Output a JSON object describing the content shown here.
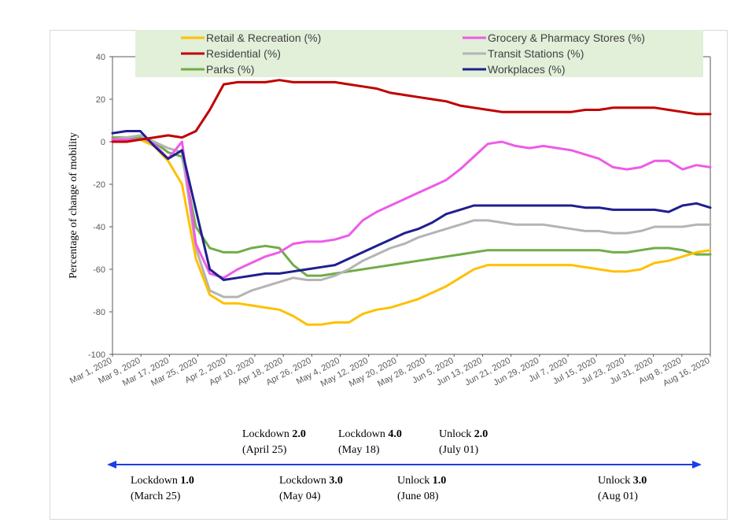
{
  "chart_data": {
    "type": "line",
    "title": "",
    "xlabel": "",
    "ylabel": "Percentage of change of mobility",
    "ylim": [
      -100,
      40
    ],
    "yticks": [
      40,
      20,
      0,
      -20,
      -40,
      -60,
      -80,
      -100
    ],
    "xticks": [
      "Mar 1, 2020",
      "Mar 9, 2020",
      "Mar 17, 2020",
      "Mar 25, 2020",
      "Apr 2, 2020",
      "Apr 10, 2020",
      "Apr 18, 2020",
      "Apr 26, 2020",
      "May 4, 2020",
      "May 12, 2020",
      "May 20, 2020",
      "May 28, 2020",
      "Jun 5, 2020",
      "Jun 13, 2020",
      "Jun 21, 2020",
      "Jun 29, 2020",
      "Jul 7, 2020",
      "Jul 15, 2020",
      "Jul 23, 2020",
      "Jul 31, 2020",
      "Aug 8, 2020",
      "Aug 16, 2020"
    ],
    "x": [
      "Mar 1",
      "Mar 5",
      "Mar 9",
      "Mar 13",
      "Mar 17",
      "Mar 21",
      "Mar 25",
      "Mar 29",
      "Apr 2",
      "Apr 6",
      "Apr 10",
      "Apr 14",
      "Apr 18",
      "Apr 22",
      "Apr 26",
      "Apr 30",
      "May 4",
      "May 8",
      "May 12",
      "May 16",
      "May 20",
      "May 24",
      "May 28",
      "Jun 1",
      "Jun 5",
      "Jun 9",
      "Jun 13",
      "Jun 17",
      "Jun 21",
      "Jun 25",
      "Jun 29",
      "Jul 3",
      "Jul 7",
      "Jul 11",
      "Jul 15",
      "Jul 19",
      "Jul 23",
      "Jul 27",
      "Jul 31",
      "Aug 4",
      "Aug 8",
      "Aug 12",
      "Aug 16",
      "Aug 20"
    ],
    "legend_position": "top",
    "grid": false,
    "series": [
      {
        "name": "Retail & Recreation (%)",
        "color": "#ffc000",
        "values": [
          0,
          0,
          1,
          -2,
          -9,
          -20,
          -55,
          -72,
          -76,
          -76,
          -77,
          -78,
          -79,
          -82,
          -86,
          -86,
          -85,
          -85,
          -81,
          -79,
          -78,
          -76,
          -74,
          -71,
          -68,
          -64,
          -60,
          -58,
          -58,
          -58,
          -58,
          -58,
          -58,
          -58,
          -59,
          -60,
          -61,
          -61,
          -60,
          -57,
          -56,
          -54,
          -52,
          -51
        ]
      },
      {
        "name": "Grocery & Pharmacy Stores (%)",
        "color": "#ee5be8",
        "values": [
          1,
          1,
          1,
          -1,
          -8,
          0,
          -48,
          -62,
          -64,
          -60,
          -57,
          -54,
          -52,
          -48,
          -47,
          -47,
          -46,
          -44,
          -37,
          -33,
          -30,
          -27,
          -24,
          -21,
          -18,
          -13,
          -7,
          -1,
          0,
          -2,
          -3,
          -2,
          -3,
          -4,
          -6,
          -8,
          -12,
          -13,
          -12,
          -9,
          -9,
          -13,
          -11,
          -12
        ]
      },
      {
        "name": "Residential (%)",
        "color": "#c00000",
        "values": [
          0,
          0,
          1,
          2,
          3,
          2,
          5,
          15,
          27,
          28,
          28,
          28,
          29,
          28,
          28,
          28,
          28,
          27,
          26,
          25,
          23,
          22,
          21,
          20,
          19,
          17,
          16,
          15,
          14,
          14,
          14,
          14,
          14,
          14,
          15,
          15,
          16,
          16,
          16,
          16,
          15,
          14,
          13,
          13
        ]
      },
      {
        "name": "Transit Stations (%)",
        "color": "#b4b4b4",
        "values": [
          1,
          2,
          3,
          0,
          -3,
          -5,
          -50,
          -70,
          -73,
          -73,
          -70,
          -68,
          -66,
          -64,
          -65,
          -65,
          -63,
          -60,
          -56,
          -53,
          -50,
          -48,
          -45,
          -43,
          -41,
          -39,
          -37,
          -37,
          -38,
          -39,
          -39,
          -39,
          -40,
          -41,
          -42,
          -42,
          -43,
          -43,
          -42,
          -40,
          -40,
          -40,
          -39,
          -39
        ]
      },
      {
        "name": "Parks (%)",
        "color": "#70ad47",
        "values": [
          2,
          2,
          2,
          0,
          -5,
          -7,
          -40,
          -50,
          -52,
          -52,
          -50,
          -49,
          -50,
          -58,
          -63,
          -63,
          -62,
          -61,
          -60,
          -59,
          -58,
          -57,
          -56,
          -55,
          -54,
          -53,
          -52,
          -51,
          -51,
          -51,
          -51,
          -51,
          -51,
          -51,
          -51,
          -51,
          -52,
          -52,
          -51,
          -50,
          -50,
          -51,
          -53,
          -53
        ]
      },
      {
        "name": "Workplaces (%)",
        "color": "#1f1f8f",
        "values": [
          4,
          5,
          5,
          -2,
          -8,
          -4,
          -32,
          -60,
          -65,
          -64,
          -63,
          -62,
          -62,
          -61,
          -60,
          -59,
          -58,
          -55,
          -52,
          -49,
          -46,
          -43,
          -41,
          -38,
          -34,
          -32,
          -30,
          -30,
          -30,
          -30,
          -30,
          -30,
          -30,
          -30,
          -31,
          -31,
          -32,
          -32,
          -32,
          -32,
          -33,
          -30,
          -29,
          -31
        ]
      }
    ]
  },
  "timeline": {
    "phases": [
      {
        "id": "lockdown1",
        "name": "Lockdown ",
        "num": "1.0",
        "date": "(March 25)",
        "row": "below",
        "day": 24
      },
      {
        "id": "lockdown2",
        "name": "Lockdown ",
        "num": "2.0",
        "date": "(April 25)",
        "row": "above",
        "day": 55
      },
      {
        "id": "lockdown3",
        "name": "Lockdown ",
        "num": "3.0",
        "date": "(May 04)",
        "row": "below",
        "day": 64
      },
      {
        "id": "lockdown4",
        "name": "Lockdown ",
        "num": "4.0",
        "date": "(May 18)",
        "row": "above",
        "day": 78
      },
      {
        "id": "unlock1",
        "name": "Unlock ",
        "num": "1.0",
        "date": "(June 08)",
        "row": "below",
        "day": 99
      },
      {
        "id": "unlock2",
        "name": "Unlock ",
        "num": "2.0",
        "date": "(July 01)",
        "row": "above",
        "day": 122
      },
      {
        "id": "unlock3",
        "name": "Unlock ",
        "num": "3.0",
        "date": "(Aug 01)",
        "row": "below",
        "day": 153
      }
    ]
  }
}
